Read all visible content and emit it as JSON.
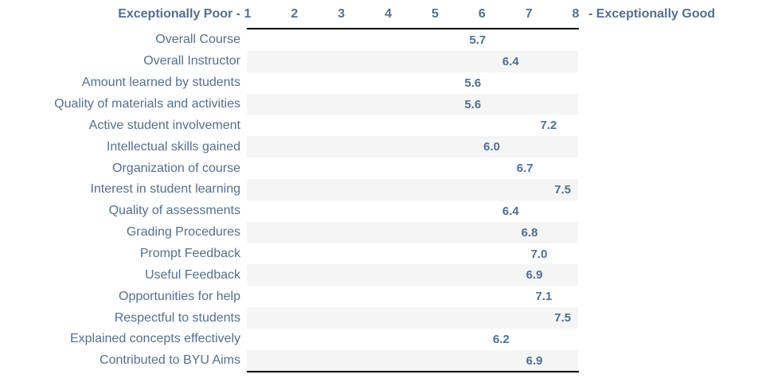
{
  "chart_data": {
    "type": "bar",
    "title": "",
    "scale": {
      "min_label": "Exceptionally Poor -",
      "max_label": "- Exceptionally Good",
      "ticks": [
        "1",
        "2",
        "3",
        "4",
        "5",
        "6",
        "7",
        "8"
      ],
      "min": 1,
      "max": 8
    },
    "categories": [
      "Overall Course",
      "Overall Instructor",
      "Amount learned by students",
      "Quality of materials and activities",
      "Active student involvement",
      "Intellectual skills gained",
      "Organization of course",
      "Interest in student learning",
      "Quality of assessments",
      "Grading Procedures",
      "Prompt Feedback",
      "Useful Feedback",
      "Opportunities for help",
      "Respectful to students",
      "Explained concepts effectively",
      "Contributed to BYU Aims"
    ],
    "values": [
      5.7,
      6.4,
      5.6,
      5.6,
      7.2,
      6.0,
      6.7,
      7.5,
      6.4,
      6.8,
      7.0,
      6.9,
      7.1,
      7.5,
      6.2,
      6.9
    ],
    "layout": {
      "grid": false,
      "zebra_striping": true,
      "value_labels_shown": true
    }
  },
  "colors": {
    "text": "#53708e",
    "value_text": "#4f6f92",
    "stripe": "#f5f5f5",
    "axis_line": "#000000",
    "background": "#ffffff"
  }
}
